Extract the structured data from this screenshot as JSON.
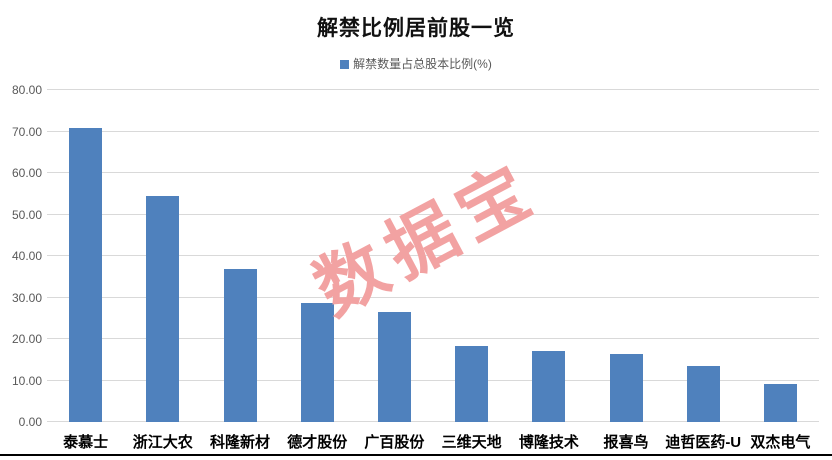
{
  "page": {
    "watermark": "数据宝"
  },
  "chart_data": {
    "type": "bar",
    "title": "解禁比例居前股一览",
    "legend": "解禁数量占总股本比例(%)",
    "legend_position": "top-center",
    "categories": [
      "泰慕士",
      "浙江大农",
      "科隆新材",
      "德才股份",
      "广百股份",
      "三维天地",
      "博隆技术",
      "报喜鸟",
      "迪哲医药-U",
      "双杰电气"
    ],
    "values": [
      70.8,
      54.4,
      36.9,
      28.6,
      26.5,
      18.2,
      17.1,
      16.4,
      13.6,
      9.1
    ],
    "xlabel": "",
    "ylabel": "",
    "ylim": [
      0,
      80
    ],
    "ytick_step": 10,
    "ytick_labels": [
      "80.00",
      "70.00",
      "60.00",
      "50.00",
      "40.00",
      "30.00",
      "20.00",
      "10.00",
      "0.00"
    ],
    "grid": true,
    "colors": {
      "bar": "#4F81BD",
      "gridline": "#D9D9D9",
      "axis_text": "#595959",
      "category_text": "#000000",
      "title_text": "#111111",
      "watermark": "#F2A2A2"
    }
  }
}
